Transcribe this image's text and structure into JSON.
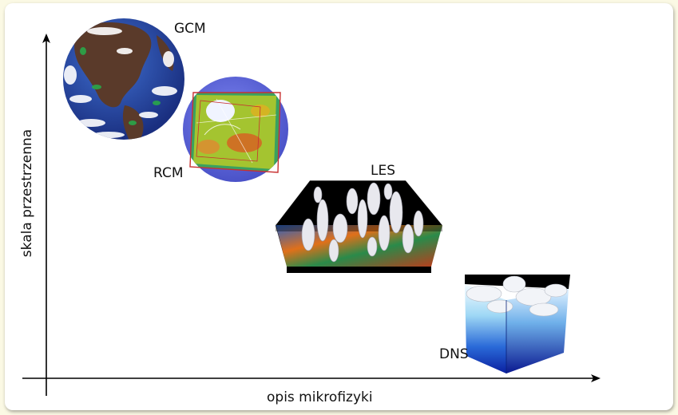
{
  "axes": {
    "x_label": "opis mikrofizyki",
    "y_label": "skala przestrzenna"
  },
  "models": [
    {
      "id": "gcm",
      "label": "GCM"
    },
    {
      "id": "rcm",
      "label": "RCM"
    },
    {
      "id": "les",
      "label": "LES"
    },
    {
      "id": "dns",
      "label": "DNS"
    }
  ],
  "colors": {
    "axis": "#000000",
    "ocean": "#2a4fb0",
    "land": "#5a3a2a",
    "rcm_outer": "#6d75e8",
    "rcm_box": "#c83030",
    "les_floor": "#e05a1a",
    "dns_deep": "#0a2aa0",
    "dns_light": "#cfeeff"
  }
}
